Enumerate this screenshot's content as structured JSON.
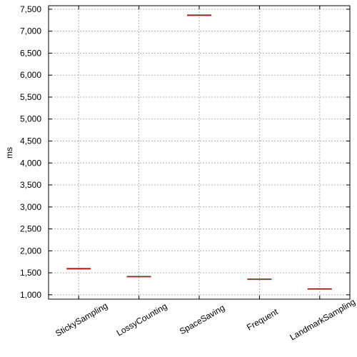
{
  "chart_data": {
    "type": "box",
    "title": "",
    "xlabel": "",
    "ylabel": "ms",
    "ylim": [
      900,
      7580
    ],
    "yticks": [
      1000,
      1500,
      2000,
      2500,
      3000,
      3500,
      4000,
      4500,
      5000,
      5500,
      6000,
      6500,
      7000,
      7500
    ],
    "ytick_labels": [
      "1,000",
      "1,500",
      "2,000",
      "2,500",
      "3,000",
      "3,500",
      "4,000",
      "4,500",
      "5,000",
      "5,500",
      "6,000",
      "6,500",
      "7,000",
      "7,500"
    ],
    "grid": true,
    "categories": [
      "StickySampling",
      "LossyCounting",
      "SpaceSaving",
      "Frequent",
      "LandmarkSampling"
    ],
    "values": [
      1590,
      1410,
      7360,
      1350,
      1130
    ],
    "colors": {
      "median": "#ff0000",
      "box": "#000000",
      "grid": "#b0b0b0",
      "axis": "#000000"
    }
  }
}
